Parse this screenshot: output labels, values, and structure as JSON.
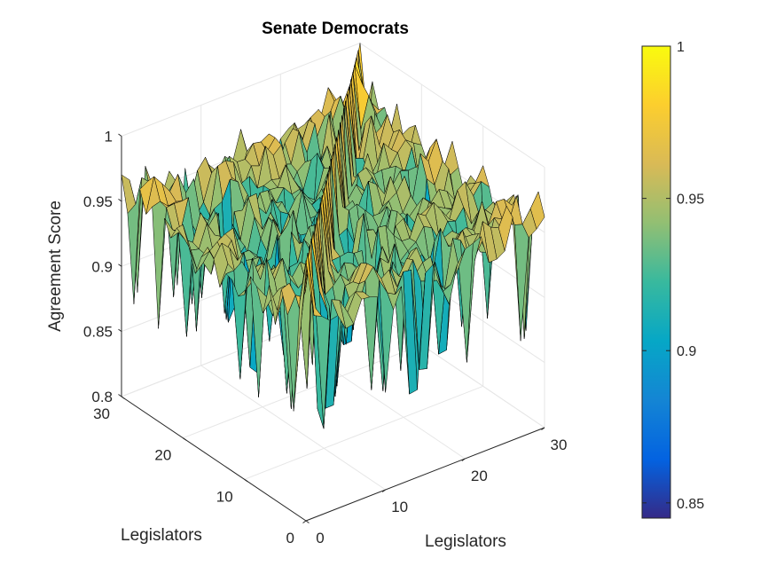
{
  "chart_data": {
    "type": "surface",
    "title": "Senate Democrats",
    "xlabel": "Legislators",
    "ylabel": "Legislators",
    "zlabel": "Agreement Score",
    "xlim": [
      0,
      30
    ],
    "ylim": [
      0,
      30
    ],
    "zlim": [
      0.8,
      1.0
    ],
    "x_ticks": [
      "0",
      "10",
      "20",
      "30"
    ],
    "y_ticks": [
      "0",
      "10",
      "20",
      "30"
    ],
    "z_ticks": [
      "0.8",
      "0.85",
      "0.9",
      "0.95",
      "1"
    ],
    "grid": true,
    "colormap": "parula",
    "colorbar": {
      "range": [
        0.845,
        1.0
      ],
      "ticks": [
        "0.85",
        "0.9",
        "0.95",
        "1"
      ],
      "tick_values": [
        0.85,
        0.9,
        0.95,
        1.0
      ]
    },
    "n_legislators": 30,
    "value_range_estimated": [
      0.86,
      1.0
    ],
    "diagonal_value": 1.0
  },
  "colors": {
    "colormap_stops": [
      "#352a87",
      "#0363e1",
      "#1485d4",
      "#06a7c6",
      "#38b99e",
      "#92bf73",
      "#d9ba56",
      "#fcce2e",
      "#f9fb0e"
    ],
    "axis": "#262626",
    "grid": "#e6e6e6",
    "edge": "#000000"
  }
}
